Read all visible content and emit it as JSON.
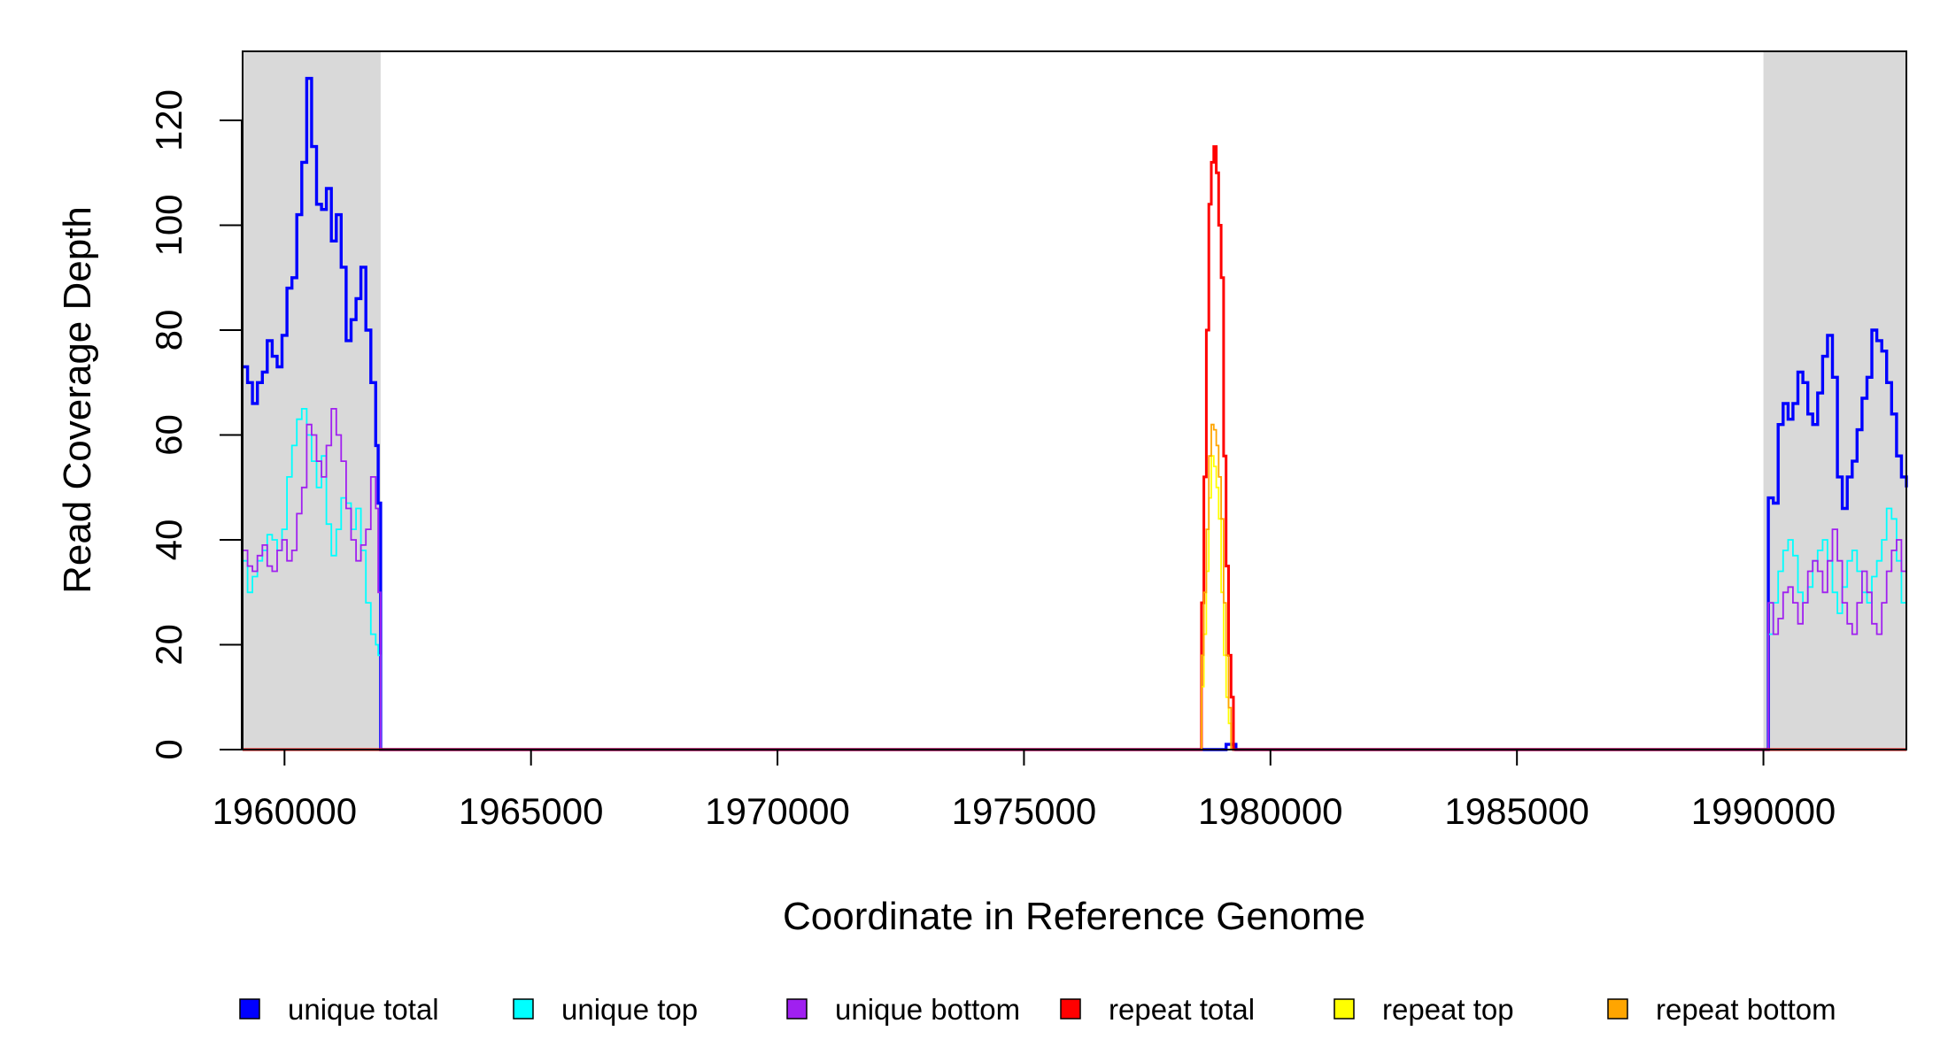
{
  "chart_data": {
    "type": "line",
    "xlabel": "Coordinate in Reference Genome",
    "ylabel": "Read Coverage Depth",
    "xlim": [
      1959150,
      1992900
    ],
    "ylim": [
      0,
      133
    ],
    "x_ticks": [
      "1960000",
      "1965000",
      "1970000",
      "1975000",
      "1980000",
      "1985000",
      "1990000"
    ],
    "y_ticks": [
      "0",
      "20",
      "40",
      "60",
      "80",
      "100",
      "120"
    ],
    "grid": false,
    "shaded_regions": [
      {
        "x": [
          1959150,
          1961950
        ],
        "color": "#d9d9d9"
      },
      {
        "x": [
          1990000,
          1992900
        ],
        "color": "#d9d9d9"
      }
    ],
    "legend_position": "bottom",
    "series": [
      {
        "name": "unique total",
        "color": "#0000ff",
        "width": 3.4,
        "x": [
          1959150,
          1959250,
          1959350,
          1959450,
          1959550,
          1959650,
          1959750,
          1959850,
          1959950,
          1960050,
          1960150,
          1960250,
          1960350,
          1960450,
          1960550,
          1960650,
          1960750,
          1960850,
          1960950,
          1961050,
          1961150,
          1961250,
          1961350,
          1961450,
          1961550,
          1961650,
          1961750,
          1961850,
          1961900,
          1961950,
          1962000,
          1978600,
          1979100,
          1979300,
          1990000,
          1990100,
          1990200,
          1990300,
          1990400,
          1990500,
          1990600,
          1990700,
          1990800,
          1990900,
          1991000,
          1991100,
          1991200,
          1991300,
          1991400,
          1991500,
          1991600,
          1991700,
          1991800,
          1991900,
          1992000,
          1992100,
          1992200,
          1992300,
          1992400,
          1992500,
          1992600,
          1992700,
          1992800,
          1992900
        ],
        "y": [
          73,
          70,
          66,
          70,
          72,
          78,
          75,
          73,
          79,
          88,
          90,
          102,
          112,
          128,
          115,
          104,
          103,
          107,
          97,
          102,
          92,
          78,
          82,
          86,
          92,
          80,
          70,
          58,
          47,
          0,
          0,
          0,
          1,
          0,
          0,
          48,
          47,
          62,
          66,
          63,
          66,
          72,
          70,
          64,
          62,
          68,
          75,
          79,
          71,
          52,
          46,
          52,
          55,
          61,
          67,
          71,
          80,
          78,
          76,
          70,
          64,
          56,
          52,
          50
        ]
      },
      {
        "name": "unique top",
        "color": "#00ffff",
        "width": 1.8,
        "x": [
          1959150,
          1959250,
          1959350,
          1959450,
          1959550,
          1959650,
          1959750,
          1959850,
          1959950,
          1960050,
          1960150,
          1960250,
          1960350,
          1960450,
          1960550,
          1960650,
          1960750,
          1960850,
          1960950,
          1961050,
          1961150,
          1961250,
          1961350,
          1961450,
          1961550,
          1961650,
          1961750,
          1961850,
          1961900,
          1961950,
          1962000,
          1990000,
          1990100,
          1990200,
          1990300,
          1990400,
          1990500,
          1990600,
          1990700,
          1990800,
          1990900,
          1991000,
          1991100,
          1991200,
          1991300,
          1991400,
          1991500,
          1991600,
          1991700,
          1991800,
          1991900,
          1992000,
          1992100,
          1992200,
          1992300,
          1992400,
          1992500,
          1992600,
          1992700,
          1992800,
          1992900
        ],
        "y": [
          36,
          30,
          33,
          36,
          38,
          41,
          40,
          38,
          42,
          52,
          58,
          63,
          65,
          60,
          55,
          50,
          56,
          43,
          37,
          42,
          48,
          47,
          42,
          46,
          38,
          28,
          22,
          20,
          18,
          0,
          0,
          0,
          22,
          28,
          34,
          38,
          40,
          37,
          30,
          28,
          31,
          36,
          38,
          40,
          36,
          30,
          26,
          31,
          36,
          38,
          34,
          30,
          28,
          33,
          36,
          40,
          46,
          44,
          36,
          28,
          20
        ]
      },
      {
        "name": "unique bottom",
        "color": "#a020f0",
        "width": 1.8,
        "x": [
          1959150,
          1959250,
          1959350,
          1959450,
          1959550,
          1959650,
          1959750,
          1959850,
          1959950,
          1960050,
          1960150,
          1960250,
          1960350,
          1960450,
          1960550,
          1960650,
          1960750,
          1960850,
          1960950,
          1961050,
          1961150,
          1961250,
          1961350,
          1961450,
          1961550,
          1961650,
          1961750,
          1961850,
          1961900,
          1961950,
          1962000,
          1990000,
          1990100,
          1990200,
          1990300,
          1990400,
          1990500,
          1990600,
          1990700,
          1990800,
          1990900,
          1991000,
          1991100,
          1991200,
          1991300,
          1991400,
          1991500,
          1991600,
          1991700,
          1991800,
          1991900,
          1992000,
          1992100,
          1992200,
          1992300,
          1992400,
          1992500,
          1992600,
          1992700,
          1992800,
          1992900
        ],
        "y": [
          38,
          35,
          34,
          37,
          39,
          35,
          34,
          38,
          40,
          36,
          38,
          45,
          50,
          62,
          60,
          55,
          52,
          58,
          65,
          60,
          55,
          46,
          40,
          36,
          39,
          42,
          52,
          46,
          30,
          0,
          0,
          0,
          28,
          22,
          25,
          30,
          31,
          28,
          24,
          28,
          34,
          36,
          34,
          30,
          36,
          42,
          36,
          28,
          24,
          22,
          28,
          34,
          30,
          24,
          22,
          28,
          34,
          38,
          40,
          34,
          28
        ]
      },
      {
        "name": "repeat total",
        "color": "#ff0000",
        "width": 3,
        "x": [
          1959150,
          1978550,
          1978600,
          1978650,
          1978700,
          1978750,
          1978800,
          1978850,
          1978900,
          1978950,
          1979000,
          1979050,
          1979100,
          1979150,
          1979200,
          1979250,
          1979300,
          1992900
        ],
        "y": [
          0,
          0,
          28,
          52,
          80,
          104,
          112,
          115,
          110,
          100,
          90,
          56,
          35,
          18,
          10,
          0,
          0,
          0
        ]
      },
      {
        "name": "repeat top",
        "color": "#ffff00",
        "width": 1.8,
        "x": [
          1959150,
          1978550,
          1978600,
          1978650,
          1978700,
          1978750,
          1978800,
          1978850,
          1978900,
          1978950,
          1979000,
          1979050,
          1979100,
          1979150,
          1979200,
          1979250,
          1979300,
          1992900
        ],
        "y": [
          0,
          0,
          12,
          22,
          34,
          48,
          56,
          54,
          50,
          44,
          30,
          18,
          10,
          5,
          0,
          0,
          0,
          0
        ]
      },
      {
        "name": "repeat bottom",
        "color": "#ffa500",
        "width": 1.8,
        "x": [
          1959150,
          1978550,
          1978600,
          1978650,
          1978700,
          1978750,
          1978800,
          1978850,
          1978900,
          1978950,
          1979000,
          1979050,
          1979100,
          1979150,
          1979200,
          1979250,
          1979300,
          1992900
        ],
        "y": [
          0,
          0,
          18,
          30,
          42,
          56,
          62,
          61,
          58,
          52,
          44,
          28,
          18,
          8,
          0,
          0,
          0,
          0
        ]
      }
    ]
  }
}
